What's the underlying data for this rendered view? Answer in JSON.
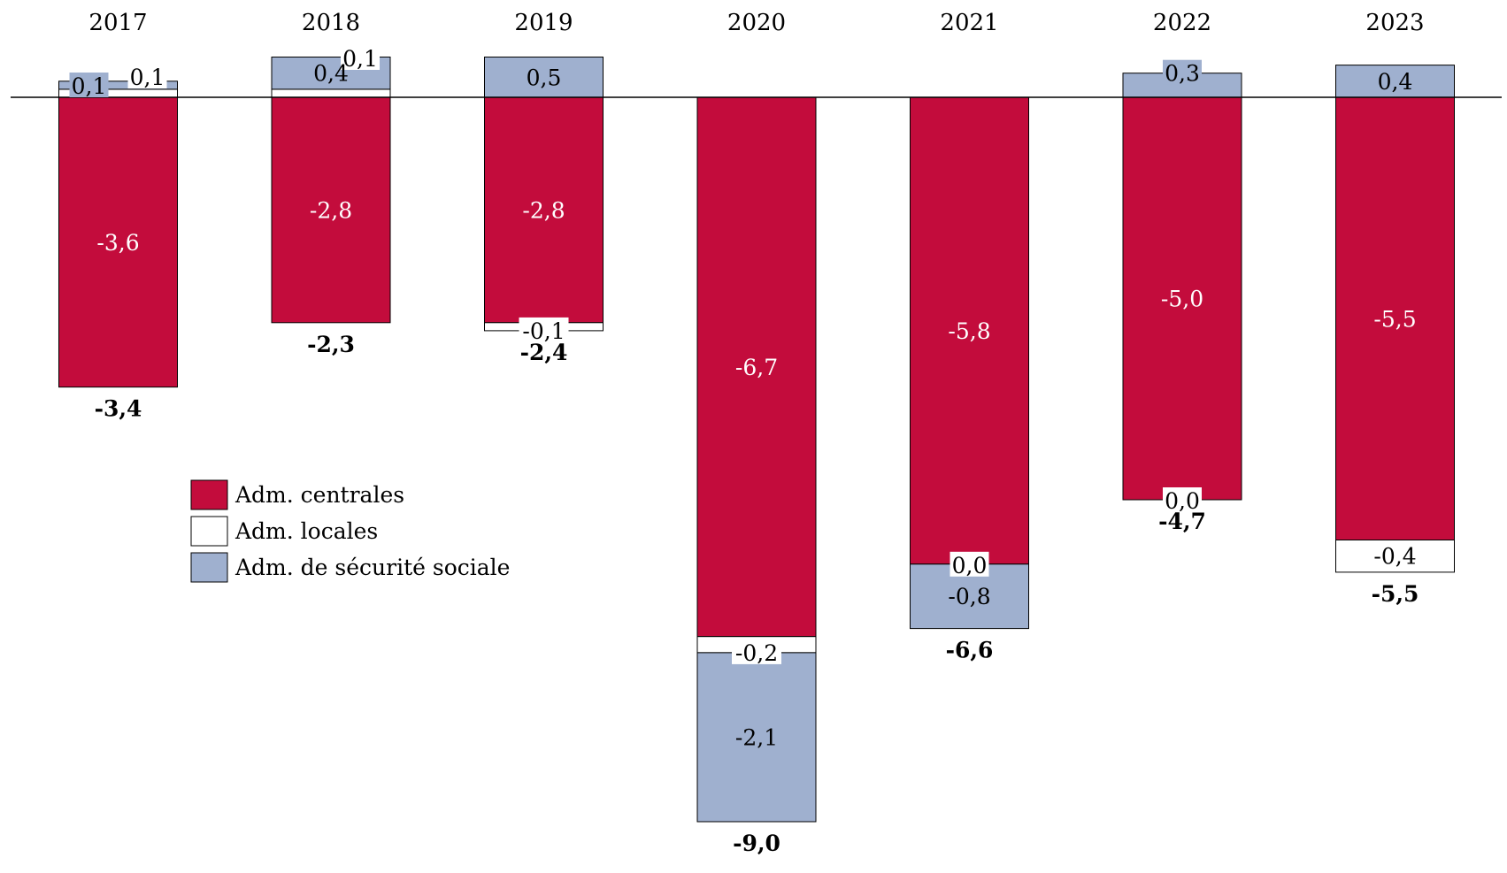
{
  "chart_data": {
    "type": "stacked-bar",
    "categories": [
      "2017",
      "2018",
      "2019",
      "2020",
      "2021",
      "2022",
      "2023"
    ],
    "series": [
      {
        "name": "Adm. centrales",
        "color": "#C30C3C",
        "values": [
          -3.6,
          -2.8,
          -2.8,
          -6.7,
          -5.8,
          -5.0,
          -5.5
        ],
        "labels": [
          "-3,6",
          "-2,8",
          "-2,8",
          "-6,7",
          "-5,8",
          "-5,0",
          "-5,5"
        ]
      },
      {
        "name": "Adm. locales",
        "color": "#FFFFFF",
        "values": [
          0.1,
          0.1,
          -0.1,
          -0.2,
          0.0,
          0.0,
          -0.4
        ],
        "labels": [
          "0,1",
          "0,1",
          "-0,1",
          "-0,2",
          "0,0",
          "0,0",
          "-0,4"
        ]
      },
      {
        "name": "Adm. de sécurité sociale",
        "color": "#9FB0CF",
        "values": [
          0.1,
          0.4,
          0.5,
          -2.1,
          -0.8,
          0.3,
          0.4
        ],
        "labels": [
          "0,1",
          "0,4",
          "0,5",
          "-2,1",
          "-0,8",
          "0,3",
          "0,4"
        ]
      }
    ],
    "totals": [
      -3.4,
      -2.3,
      -2.4,
      -9.0,
      -6.6,
      -4.7,
      -5.5
    ],
    "total_labels": [
      "-3,4",
      "-2,3",
      "-2,4",
      "-9,0",
      "-6,6",
      "-4,7",
      "-5,5"
    ],
    "ylim": [
      -9.2,
      0.6
    ],
    "title": "",
    "xlabel": "",
    "ylabel": "",
    "legend_position": "left",
    "grid": false
  }
}
